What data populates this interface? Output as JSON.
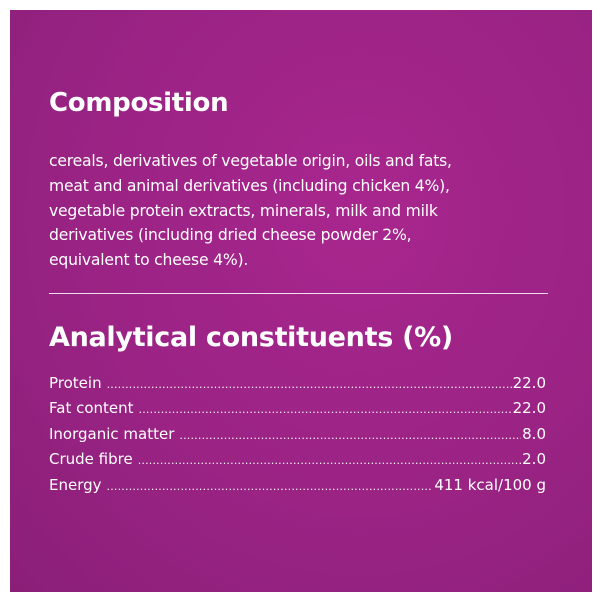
{
  "panel": {
    "background_color": "#9b2384",
    "text_color": "#ffffff"
  },
  "composition": {
    "title": "Composition",
    "lines": [
      "cereals, derivatives of vegetable origin, oils and fats,",
      "meat and animal derivatives (including chicken 4%),",
      "vegetable protein extracts, minerals, milk and milk",
      "derivatives (including dried cheese powder 2%,",
      "equivalent to cheese 4%)."
    ]
  },
  "analytical": {
    "title": "Analytical constituents (%)",
    "rows": [
      {
        "label": "Protein",
        "value": "22.0"
      },
      {
        "label": "Fat content",
        "value": "22.0"
      },
      {
        "label": "Inorganic matter",
        "value": "8.0"
      },
      {
        "label": "Crude fibre",
        "value": "2.0"
      },
      {
        "label": "Energy",
        "value": "411 kcal/100 g"
      }
    ]
  }
}
